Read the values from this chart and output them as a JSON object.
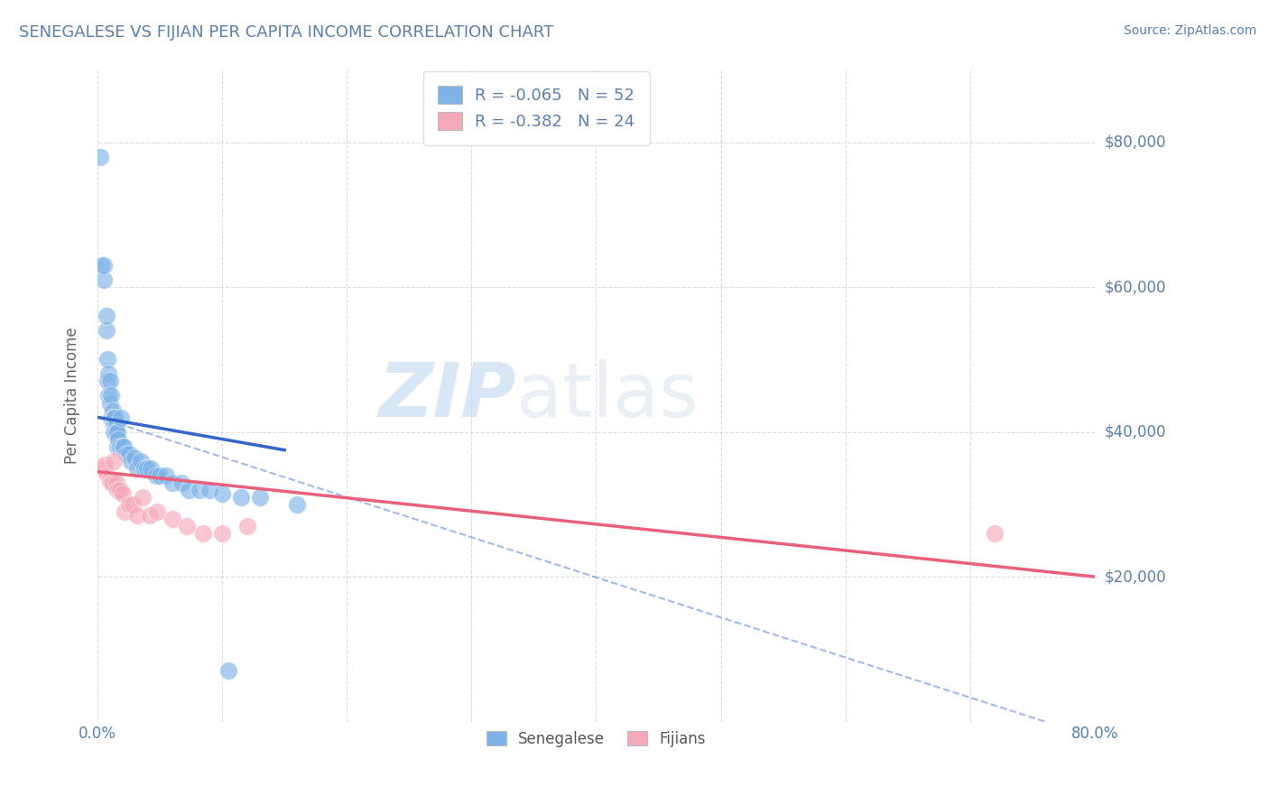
{
  "title": "SENEGALESE VS FIJIAN PER CAPITA INCOME CORRELATION CHART",
  "source_text": "Source: ZipAtlas.com",
  "ylabel": "Per Capita Income",
  "xlim": [
    0.0,
    0.8
  ],
  "ylim": [
    0,
    90000
  ],
  "yticks": [
    0,
    20000,
    40000,
    60000,
    80000
  ],
  "xticks": [
    0.0,
    0.1,
    0.2,
    0.3,
    0.4,
    0.5,
    0.6,
    0.7,
    0.8
  ],
  "xtick_labels": [
    "0.0%",
    "",
    "",
    "",
    "",
    "",
    "",
    "",
    "80.0%"
  ],
  "r_senegalese": -0.065,
  "n_senegalese": 52,
  "r_fijian": -0.382,
  "n_fijian": 24,
  "watermark_zip": "ZIP",
  "watermark_atlas": "atlas",
  "senegalese_color": "#7EB3E8",
  "fijian_color": "#F4A8B8",
  "senegalese_line_color": "#3366CC",
  "fijian_line_color": "#E8607A",
  "grid_color": "#CCCCCC",
  "background_color": "#FFFFFF",
  "title_color": "#5B7FA6",
  "axis_color": "#5B7FA6",
  "senegalese_line_x": [
    0.001,
    0.15
  ],
  "senegalese_line_y": [
    42000,
    37500
  ],
  "fijian_line_x": [
    0.001,
    0.8
  ],
  "fijian_line_y": [
    34500,
    20000
  ],
  "dashed_line_x": [
    0.001,
    0.76
  ],
  "dashed_line_y": [
    42000,
    0
  ],
  "senegalese_points_x": [
    0.002,
    0.003,
    0.005,
    0.005,
    0.007,
    0.007,
    0.008,
    0.008,
    0.009,
    0.009,
    0.01,
    0.01,
    0.011,
    0.011,
    0.012,
    0.012,
    0.013,
    0.013,
    0.013,
    0.014,
    0.014,
    0.015,
    0.015,
    0.016,
    0.016,
    0.017,
    0.018,
    0.019,
    0.02,
    0.021,
    0.023,
    0.025,
    0.027,
    0.03,
    0.032,
    0.035,
    0.038,
    0.04,
    0.043,
    0.047,
    0.05,
    0.055,
    0.06,
    0.067,
    0.073,
    0.082,
    0.09,
    0.1,
    0.105,
    0.115,
    0.13,
    0.16
  ],
  "senegalese_points_y": [
    78000,
    63000,
    61000,
    63000,
    54000,
    56000,
    50000,
    47000,
    48000,
    45000,
    47000,
    44000,
    45000,
    42000,
    43000,
    42000,
    42000,
    41000,
    40000,
    42000,
    40000,
    41000,
    40000,
    40000,
    38000,
    39000,
    38000,
    42000,
    38000,
    38000,
    37000,
    37000,
    36000,
    36500,
    35000,
    36000,
    35000,
    35000,
    35000,
    34000,
    34000,
    34000,
    33000,
    33000,
    32000,
    32000,
    32000,
    31500,
    7000,
    31000,
    31000,
    30000
  ],
  "fijian_points_x": [
    0.004,
    0.006,
    0.008,
    0.01,
    0.011,
    0.012,
    0.013,
    0.015,
    0.016,
    0.018,
    0.02,
    0.022,
    0.025,
    0.028,
    0.032,
    0.036,
    0.042,
    0.048,
    0.06,
    0.072,
    0.085,
    0.1,
    0.12,
    0.72
  ],
  "fijian_points_y": [
    35000,
    35500,
    34000,
    33500,
    33000,
    33000,
    36000,
    33000,
    32000,
    32000,
    31500,
    29000,
    30000,
    30000,
    28500,
    31000,
    28500,
    29000,
    28000,
    27000,
    26000,
    26000,
    27000,
    26000
  ]
}
